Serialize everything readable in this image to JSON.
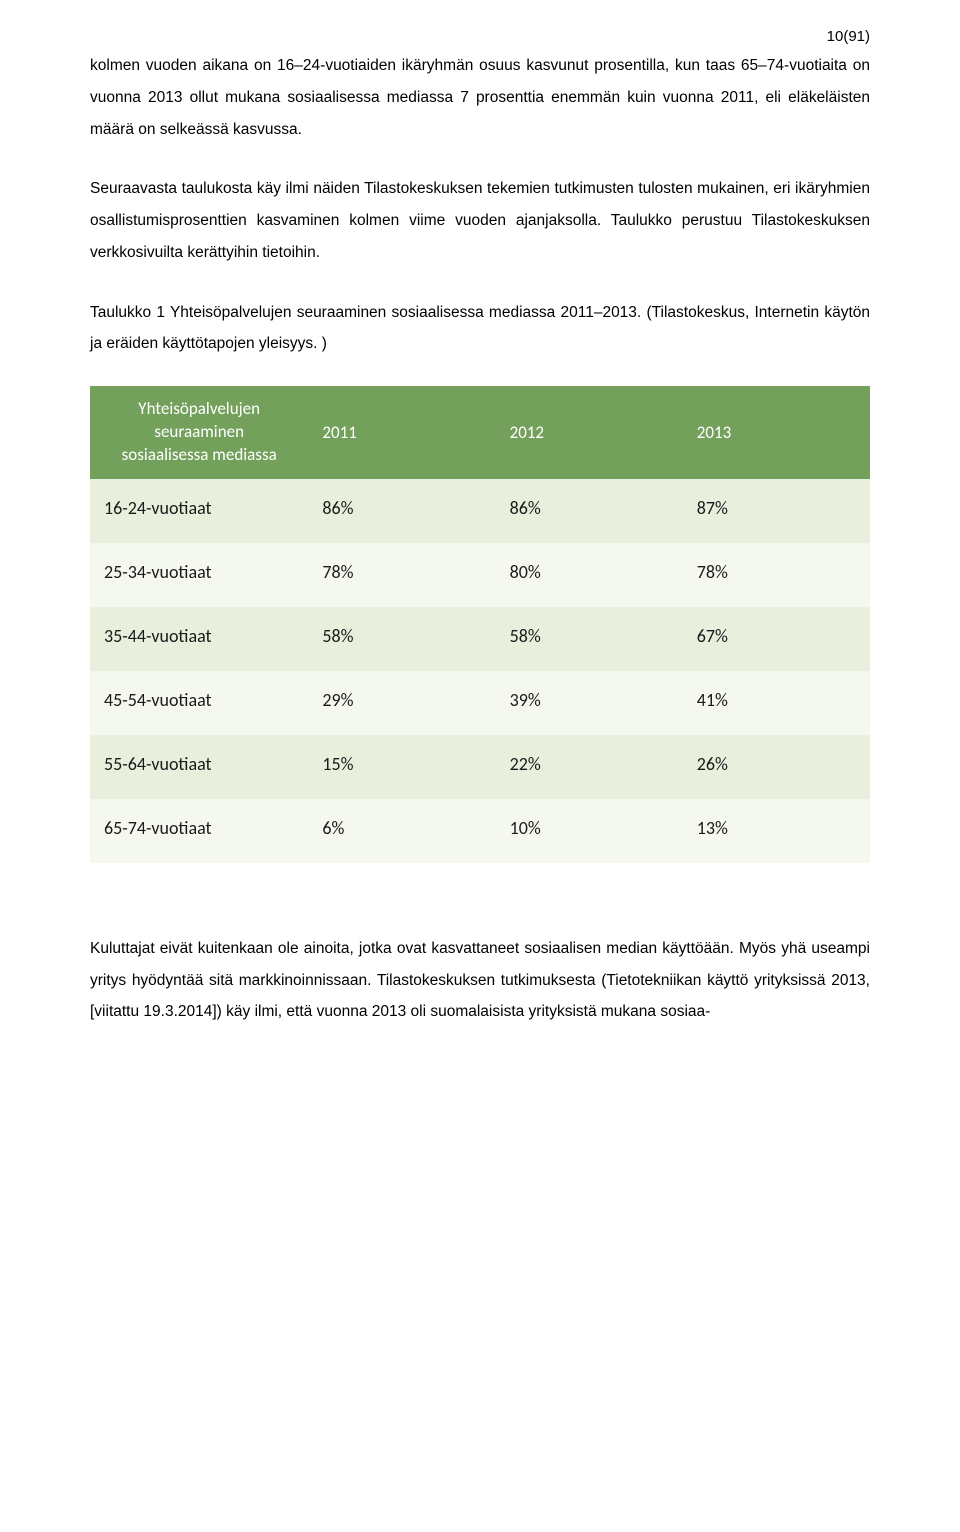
{
  "page_number": "10(91)",
  "paragraphs": {
    "p1": "kolmen vuoden aikana on 16–24-vuotiaiden ikäryhmän osuus kasvunut prosentilla, kun taas 65–74-vuotiaita on vuonna 2013 ollut mukana sosiaalisessa mediassa 7 prosenttia enemmän kuin vuonna 2011, eli eläkeläisten määrä on selkeässä kasvussa.",
    "p2": "Seuraavasta taulukosta käy ilmi näiden Tilastokeskuksen tekemien tutkimusten tulosten mukainen, eri ikäryhmien osallistumisprosenttien kasvaminen kolmen viime vuoden ajanjaksolla. Taulukko perustuu Tilastokeskuksen verkkosivuilta kerättyihin tietoihin.",
    "caption": "Taulukko 1 Yhteisöpalvelujen seuraaminen sosiaalisessa mediassa 2011–2013. (Tilastokeskus, Internetin käytön ja eräiden käyttötapojen yleisyys. )",
    "p3": "Kuluttajat eivät kuitenkaan ole ainoita, jotka ovat kasvattaneet sosiaalisen median käyttöään. Myös yhä useampi yritys hyödyntää sitä markkinoinnissaan. Tilastokeskuksen tutkimuksesta (Tietotekniikan käyttö yrityksissä 2013, [viitattu 19.3.2014]) käy ilmi, että vuonna 2013 oli suomalaisista yrityksistä mukana sosiaa-"
  },
  "table": {
    "type": "table",
    "header_bg": "#73a05b",
    "header_color": "#ffffff",
    "row_odd_bg": "#e8efdc",
    "row_even_bg": "#f5f8ef",
    "text_color": "#1a1a1a",
    "col_widths": [
      "28%",
      "24%",
      "24%",
      "24%"
    ],
    "header_label_line1": "Yhteisöpalvelujen",
    "header_label_line2": "seuraaminen",
    "header_label_line3": "sosiaalisessa mediassa",
    "columns": [
      "2011",
      "2012",
      "2013"
    ],
    "rows": [
      {
        "label": "16-24-vuotiaat",
        "values": [
          "86%",
          "86%",
          "87%"
        ]
      },
      {
        "label": "25-34-vuotiaat",
        "values": [
          "78%",
          "80%",
          "78%"
        ]
      },
      {
        "label": "35-44-vuotiaat",
        "values": [
          "58%",
          "58%",
          "67%"
        ]
      },
      {
        "label": "45-54-vuotiaat",
        "values": [
          "29%",
          "39%",
          "41%"
        ]
      },
      {
        "label": "55-64-vuotiaat",
        "values": [
          "15%",
          "22%",
          "26%"
        ]
      },
      {
        "label": "65-74-vuotiaat",
        "values": [
          "6%",
          "10%",
          "13%"
        ]
      }
    ]
  }
}
